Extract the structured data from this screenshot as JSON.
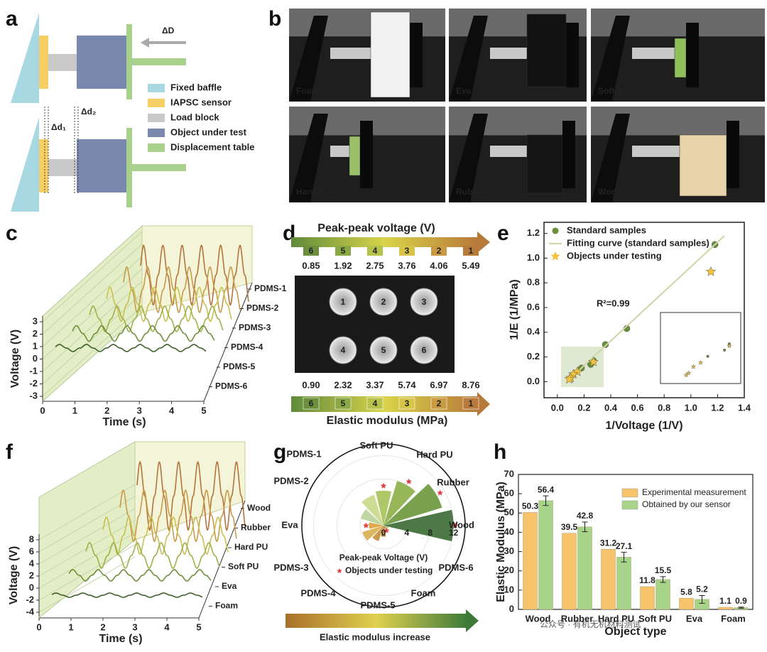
{
  "panels": {
    "a": {
      "panel_label": "a",
      "delta_D": "ΔD",
      "delta_d1": "Δd₁",
      "delta_d2": "Δd₂",
      "legend": [
        "Fixed baffle",
        "IAPSC sensor",
        "Load block",
        "Object under test",
        "Displacement table"
      ]
    },
    "b": {
      "panel_label": "b",
      "photos": [
        "Foam",
        "Eva",
        "Soft-PU",
        "Hard-PU",
        "Rubber",
        "Wood"
      ]
    },
    "d": {
      "panel_label": "d",
      "voltage_title": "Peak-peak voltage (V)",
      "steps": [
        "6",
        "5",
        "4",
        "3",
        "2",
        "1"
      ],
      "voltages": [
        "0.85",
        "1.92",
        "2.75",
        "3.76",
        "4.06",
        "5.49"
      ],
      "sample_numbers": [
        "1",
        "2",
        "3",
        "4",
        "5",
        "6"
      ],
      "moduli": [
        "0.90",
        "2.32",
        "3.37",
        "5.74",
        "6.97",
        "8.76"
      ],
      "modulus_title": "Elastic modulus (MPa)"
    }
  },
  "watermark": "公众号 · 有机无机材料测试",
  "chart_data": [
    {
      "type": "waterfall",
      "panel_label": "c",
      "ylabel": "Voltage (V)",
      "xlabel": "Time (s)",
      "ylim": [
        -3,
        3
      ],
      "yticks": [
        -3,
        -2,
        -1,
        0,
        1,
        2,
        3
      ],
      "xlim": [
        0,
        5
      ],
      "xticks": [
        0,
        1,
        2,
        3,
        4,
        5
      ],
      "labels": [
        "PDMS-1",
        "PDMS-2",
        "PDMS-3",
        "PDMS-4",
        "PDMS-5",
        "PDMS-6"
      ]
    },
    {
      "type": "scatter",
      "panel_label": "e",
      "xlabel": "1/Voltage (1/V)",
      "ylabel": "1/E (1/MPa)",
      "xlim": [
        -0.1,
        1.4
      ],
      "ylim": [
        -0.13,
        1.29
      ],
      "xticks": [
        {
          "value": 0,
          "label": "0.0"
        },
        0.2,
        0.4,
        0.6,
        0.8,
        {
          "value": 1,
          "label": "1.0"
        },
        1.2,
        1.4
      ],
      "yticks": [
        {
          "value": 0,
          "label": "0.0"
        },
        0.2,
        0.4,
        0.6,
        0.8,
        {
          "value": 1,
          "label": "1.0"
        },
        1.2
      ],
      "series": [
        {
          "name": "Standard samples",
          "marker": "circle",
          "color": "#6b8e3a",
          "x": [
            1.18,
            0.52,
            0.36,
            0.27,
            0.25,
            0.18
          ],
          "values": [
            1.11,
            0.43,
            0.3,
            0.17,
            0.14,
            0.11
          ]
        },
        {
          "name": "Fitting curve (standard samples)",
          "marker": "line",
          "color": "#c9d8a6",
          "x": [
            0.07,
            1.25
          ],
          "values": [
            0,
            1.18
          ]
        },
        {
          "name": "Objects under testing",
          "marker": "star",
          "color": "#f2c23a",
          "x": [
            1.15,
            0.27,
            0.15,
            0.12,
            0.1,
            0.09
          ],
          "values": [
            0.89,
            0.16,
            0.08,
            0.06,
            0.03,
            0.02
          ]
        }
      ],
      "annotation": "R²=0.99",
      "legend": "upper left"
    },
    {
      "type": "waterfall",
      "panel_label": "f",
      "ylabel": "Voltage (V)",
      "xlabel": "Time (s)",
      "ylim": [
        -4,
        8
      ],
      "yticks": [
        -4,
        -2,
        0,
        2,
        4,
        6,
        8
      ],
      "xlim": [
        0,
        5
      ],
      "xticks": [
        0,
        1,
        2,
        3,
        4,
        5
      ],
      "labels": [
        "Wood",
        "Rubber",
        "Hard PU",
        "Soft PU",
        "Eva",
        "Foam"
      ]
    },
    {
      "type": "polar",
      "panel_label": "g",
      "categories": [
        "Wood",
        "Rubber",
        "Hard PU",
        "Soft PU",
        "PDMS-1",
        "PDMS-2",
        "Eva",
        "PDMS-3",
        "PDMS-4",
        "PDMS-5",
        "Foam",
        "PDMS-6"
      ],
      "rlim": [
        0,
        14
      ],
      "rticks": [
        0,
        4,
        8,
        12
      ],
      "series": [
        {
          "name": "Peak-peak Voltage (V)",
          "values": [
            12,
            10.5,
            8,
            6,
            5.5,
            4.1,
            2.5,
            3.8,
            2.8,
            1.9,
            0.6,
            0.9
          ],
          "colors": [
            "#3d6e35",
            "#6f9a3f",
            "#8db04a",
            "#a9c25a",
            "#c9d88a",
            "#b9d49a",
            "#e0a040",
            "#d8b050",
            "#c89040",
            "#b88030",
            "#a87020",
            "#b8c870"
          ]
        },
        {
          "name": "Objects under testing",
          "color": "#e04040",
          "values": [
            12.3,
            11.2,
            8.7,
            6.8,
            null,
            null,
            3.0,
            null,
            null,
            null,
            1.0,
            null
          ]
        }
      ],
      "footer": "Elastic modulus increase"
    },
    {
      "type": "bar",
      "panel_label": "h",
      "xlabel": "Object type",
      "ylabel": "Elastic Modulus (MPa)",
      "categories": [
        "Wood",
        "Rubber",
        "Hard PU",
        "Soft PU",
        "Eva",
        "Foam"
      ],
      "ylim": [
        0,
        70
      ],
      "yticks": [
        0,
        10,
        20,
        30,
        40,
        50,
        60,
        70
      ],
      "series": [
        {
          "name": "Experimental measurement",
          "color": "#f7c46c",
          "values": [
            50.3,
            39.5,
            31.2,
            11.8,
            5.8,
            1.1
          ]
        },
        {
          "name": "Obtained by our sensor",
          "color": "#a8d48a",
          "values": [
            56.4,
            42.8,
            27.1,
            15.5,
            5.2,
            0.9
          ],
          "errors": [
            2.5,
            2.5,
            2.5,
            1.5,
            2,
            0.3
          ]
        }
      ],
      "legend": "upper right"
    }
  ]
}
